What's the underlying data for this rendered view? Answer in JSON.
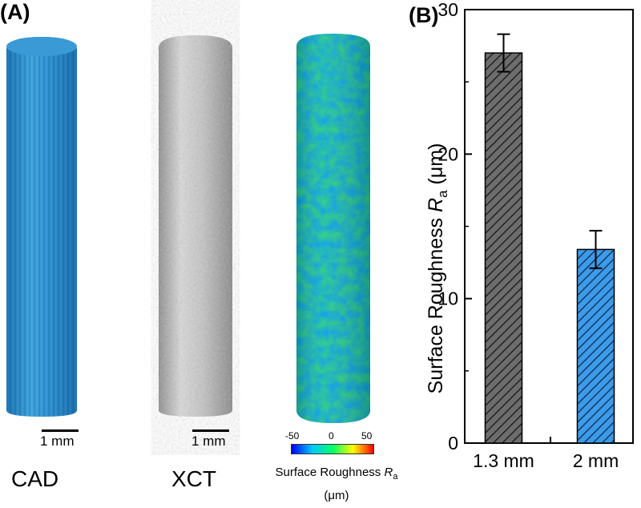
{
  "panel_a": {
    "label": "(A)",
    "captions": [
      "CAD",
      "XCT"
    ],
    "scale_bar_label": "1 mm",
    "colorbar": {
      "min_label": "-50",
      "mid_label": "0",
      "max_label": "50",
      "title_main": "Surface Roughness ",
      "title_sub": "a",
      "title_var": "R",
      "title_unit": "(μm)",
      "colors": [
        "#0000ff",
        "#00c8ff",
        "#00ff66",
        "#ffff00",
        "#ff0000"
      ]
    }
  },
  "chart_data": {
    "type": "bar",
    "panel_label": "(B)",
    "categories": [
      "1.3 mm",
      "2 mm"
    ],
    "values": [
      27.0,
      13.4
    ],
    "errors": [
      1.3,
      1.3
    ],
    "ylim": [
      0,
      30
    ],
    "yticks": [
      0,
      10,
      20,
      30
    ],
    "ylabel_main": "Surface Roughness ",
    "ylabel_var": "R",
    "ylabel_sub": "a",
    "ylabel_unit": " (μm)",
    "bar_colors": [
      "#6d6d6d",
      "#3d9be9"
    ],
    "hatch": "diagonal"
  }
}
